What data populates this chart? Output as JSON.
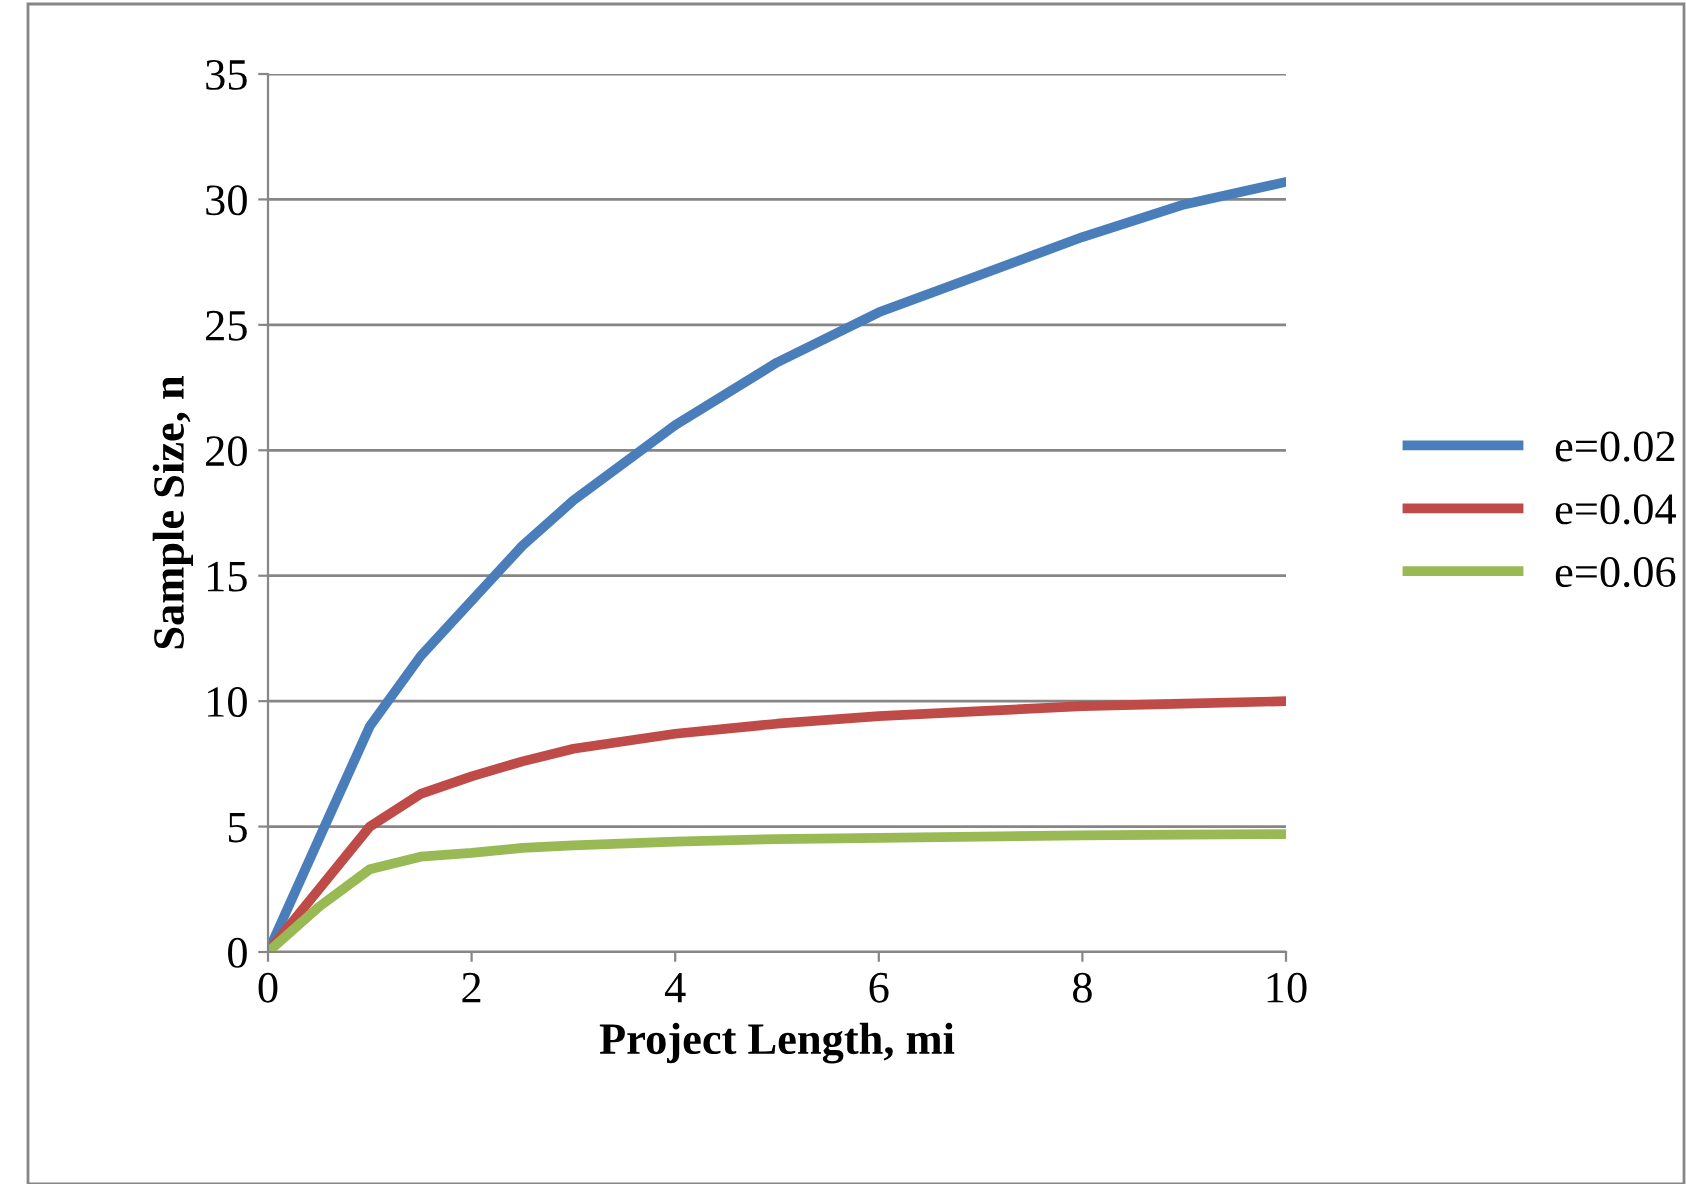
{
  "chart_data": {
    "type": "line",
    "xlabel": "Project Length, mi",
    "ylabel": "Sample Size, n",
    "xlim": [
      0,
      10
    ],
    "xticks": [
      0,
      2,
      4,
      6,
      8,
      10
    ],
    "ylim": [
      0,
      35
    ],
    "yticks": [
      0,
      5,
      10,
      15,
      20,
      25,
      30,
      35
    ],
    "grid": "y",
    "legend": "right",
    "marker": "none",
    "line_style": "solid",
    "x": [
      0,
      0.5,
      1,
      1.5,
      2,
      2.5,
      3,
      4,
      5,
      6,
      7,
      8,
      9,
      10
    ],
    "series": [
      {
        "name": "e=0.02",
        "color": "#4a7ebb",
        "values": [
          0,
          4.5,
          9,
          11.8,
          14,
          16.2,
          18,
          21,
          23.5,
          25.5,
          27,
          28.5,
          29.8,
          30.7
        ]
      },
      {
        "name": "e=0.04",
        "color": "#be4b48",
        "values": [
          0,
          2.5,
          5,
          6.3,
          7,
          7.6,
          8.1,
          8.7,
          9.1,
          9.4,
          9.6,
          9.8,
          9.9,
          10
        ]
      },
      {
        "name": "e=0.06",
        "color": "#98b954",
        "values": [
          0,
          1.8,
          3.3,
          3.8,
          3.95,
          4.15,
          4.25,
          4.4,
          4.5,
          4.55,
          4.6,
          4.65,
          4.68,
          4.7
        ]
      }
    ]
  }
}
